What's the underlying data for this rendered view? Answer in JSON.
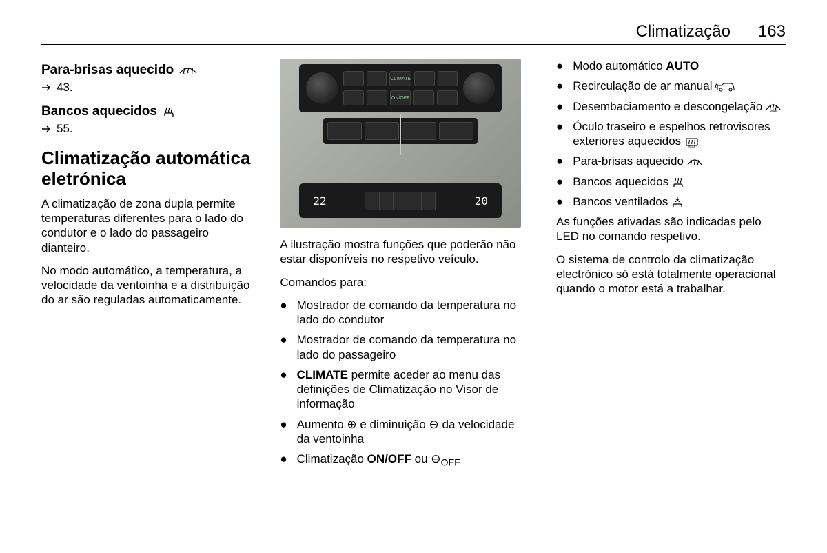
{
  "header": {
    "title": "Climatização",
    "page": "163"
  },
  "left": {
    "h1": "Para-brisas aquecido",
    "ref1": "43.",
    "h2": "Bancos aquecidos",
    "ref2": "55.",
    "h3": "Climatização automática eletrónica",
    "p1": "A climatização de zona dupla permite temperaturas diferentes para o lado do condutor e o lado do passageiro dianteiro.",
    "p2": "No modo automático, a temperatura, a velocidade da ventoinha e a distribuição do ar são reguladas automaticamente."
  },
  "mid": {
    "figure": {
      "temp_left": "22",
      "temp_right": "20"
    },
    "p1": "A ilustração mostra funções que poderão não estar disponíveis no respetivo veículo.",
    "p2": "Comandos para:",
    "items": [
      "Mostrador de comando da temperatura no lado do condutor",
      "Mostrador de comando da temperatura no lado do passageiro",
      "<b>CLIMATE</b> permite aceder ao menu das definições de Climatização no Visor de informação",
      "Aumento ⊕ e diminuição ⊖ da velocidade da ventoinha",
      "Climatização <b>ON/OFF</b> ou ⊖<sub>OFF</sub>"
    ]
  },
  "right": {
    "items": [
      "Modo automático <b>AUTO</b>",
      "Recirculação de ar manual",
      "Desembaciamento e descongelação",
      "Óculo traseiro e espelhos retrovisores exteriores aquecidos",
      "Para-brisas aquecido",
      "Bancos aquecidos",
      "Bancos ventilados"
    ],
    "item_icons": [
      "",
      "car-recirc",
      "defrost-max",
      "rear-heat",
      "windshield-heat",
      "seat-heat",
      "seat-vent"
    ],
    "p1": "As funções ativadas são indicadas pelo LED no comando respetivo.",
    "p2": "O sistema de controlo da climatização electrónico só está totalmente operacional quando o motor está a trabalhar."
  },
  "icon_glyphs": {
    "arrow": "⇨",
    "windshield-heat": "◡≋",
    "seat-heat": "♨",
    "seat-vent": "❉",
    "car-recirc": "⟲🚗",
    "defrost-max": "❄",
    "rear-heat": "▭"
  }
}
